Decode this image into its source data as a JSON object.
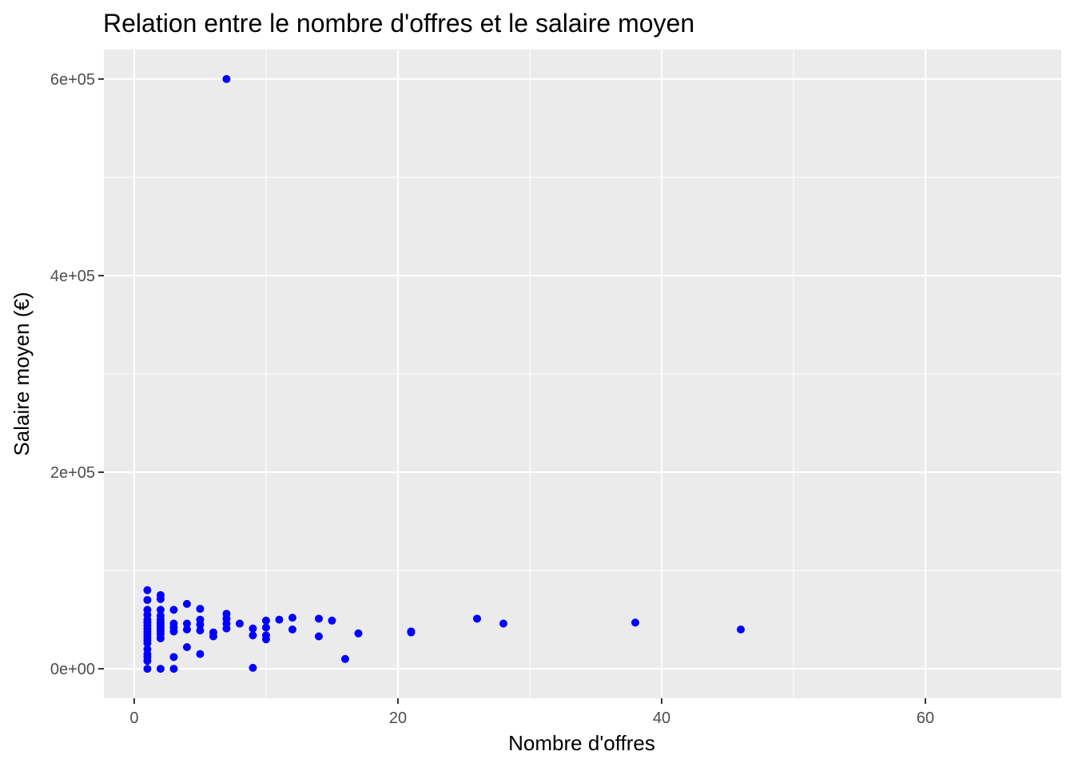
{
  "chart_data": {
    "type": "scatter",
    "title": "Relation entre le nombre d'offres et le salaire moyen",
    "xlabel": "Nombre d'offres",
    "ylabel": "Salaire moyen (€)",
    "xlim": [
      -2.3,
      70.3
    ],
    "ylim": [
      -30000,
      630000
    ],
    "x_ticks": [
      0,
      20,
      40,
      60
    ],
    "x_tick_labels": [
      "0",
      "20",
      "40",
      "60"
    ],
    "y_ticks": [
      0,
      200000,
      400000,
      600000
    ],
    "y_tick_labels": [
      "0e+00",
      "2e+05",
      "4e+05",
      "6e+05"
    ],
    "grid": true,
    "legend": "none",
    "colors": {
      "panel": "#ebebeb",
      "grid": "#ffffff",
      "point": "#0000ff",
      "tick_label": "#4d4d4d",
      "tick_mark": "#333333"
    },
    "series": [
      {
        "points": [
          [
            1,
            80000
          ],
          [
            1,
            70000
          ],
          [
            1,
            60000
          ],
          [
            1,
            55000
          ],
          [
            1,
            50000
          ],
          [
            1,
            47000
          ],
          [
            1,
            44000
          ],
          [
            1,
            41000
          ],
          [
            1,
            38000
          ],
          [
            1,
            35000
          ],
          [
            1,
            32000
          ],
          [
            1,
            29000
          ],
          [
            1,
            26000
          ],
          [
            1,
            20000
          ],
          [
            1,
            15000
          ],
          [
            1,
            12000
          ],
          [
            1,
            8000
          ],
          [
            1,
            0
          ],
          [
            2,
            75000
          ],
          [
            2,
            71000
          ],
          [
            2,
            60000
          ],
          [
            2,
            54000
          ],
          [
            2,
            50000
          ],
          [
            2,
            47000
          ],
          [
            2,
            44000
          ],
          [
            2,
            41000
          ],
          [
            2,
            38000
          ],
          [
            2,
            35000
          ],
          [
            2,
            31000
          ],
          [
            2,
            0
          ],
          [
            3,
            60000
          ],
          [
            3,
            46000
          ],
          [
            3,
            42000
          ],
          [
            3,
            38000
          ],
          [
            3,
            12000
          ],
          [
            3,
            0
          ],
          [
            4,
            66000
          ],
          [
            4,
            46000
          ],
          [
            4,
            40000
          ],
          [
            4,
            22000
          ],
          [
            5,
            61000
          ],
          [
            5,
            50000
          ],
          [
            5,
            45000
          ],
          [
            5,
            39000
          ],
          [
            5,
            15000
          ],
          [
            6,
            37000
          ],
          [
            6,
            33000
          ],
          [
            7,
            600000
          ],
          [
            7,
            56000
          ],
          [
            7,
            51000
          ],
          [
            7,
            46000
          ],
          [
            7,
            41000
          ],
          [
            8,
            46000
          ],
          [
            9,
            41000
          ],
          [
            9,
            34000
          ],
          [
            9,
            1000
          ],
          [
            10,
            49000
          ],
          [
            10,
            42000
          ],
          [
            10,
            34000
          ],
          [
            10,
            30000
          ],
          [
            11,
            50000
          ],
          [
            12,
            52000
          ],
          [
            12,
            40000
          ],
          [
            14,
            51000
          ],
          [
            14,
            33000
          ],
          [
            15,
            49000
          ],
          [
            16,
            10000
          ],
          [
            17,
            36000
          ],
          [
            21,
            38000
          ],
          [
            21,
            37000
          ],
          [
            26,
            51000
          ],
          [
            28,
            46000
          ],
          [
            38,
            47000
          ],
          [
            46,
            40000
          ]
        ]
      }
    ]
  }
}
